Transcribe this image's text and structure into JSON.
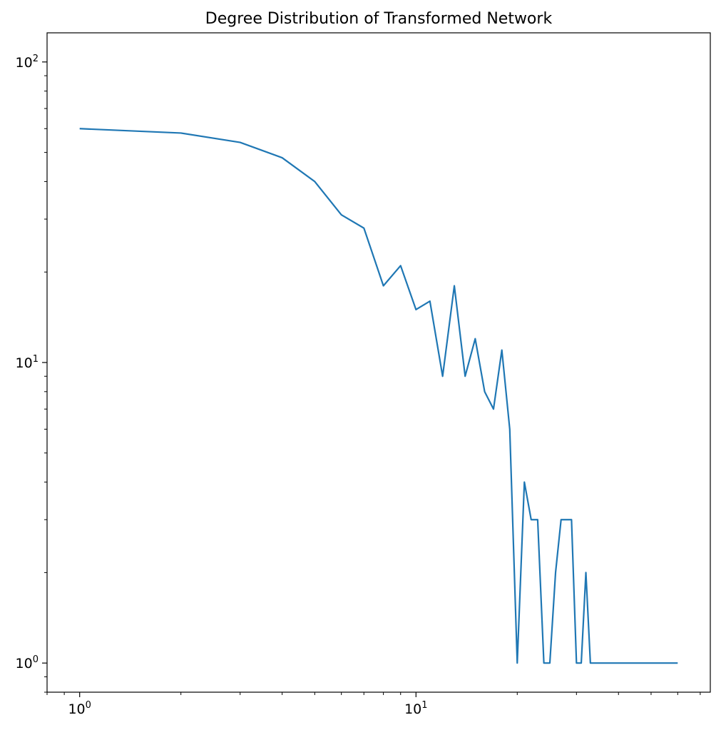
{
  "chart_data": {
    "type": "line",
    "title": "Degree Distribution of Transformed Network",
    "xlabel": "",
    "ylabel": "",
    "xscale": "log",
    "yscale": "log",
    "grid": false,
    "xlim": [
      0.8,
      75
    ],
    "ylim": [
      0.8,
      125
    ],
    "x_ticks": [
      {
        "value": 1,
        "label": "10",
        "exp": "0"
      },
      {
        "value": 10,
        "label": "10",
        "exp": "1"
      }
    ],
    "y_ticks": [
      {
        "value": 1,
        "label": "10",
        "exp": "0"
      },
      {
        "value": 10,
        "label": "10",
        "exp": "1"
      },
      {
        "value": 100,
        "label": "10",
        "exp": "2"
      }
    ],
    "series": [
      {
        "color": "#1f77b4",
        "x": [
          0,
          1,
          2,
          3,
          4,
          5,
          6,
          7,
          8,
          9,
          10,
          11,
          12,
          13,
          14,
          15,
          16,
          17,
          18,
          19,
          20,
          21,
          22,
          23,
          24,
          25,
          26,
          27,
          28,
          29,
          30,
          31,
          32,
          33,
          34,
          35,
          36,
          37,
          38,
          39,
          40,
          41,
          42,
          43,
          44,
          45,
          46,
          47,
          48,
          49,
          50,
          51,
          52,
          53,
          54,
          55,
          56,
          57,
          58,
          59,
          60
        ],
        "y": [
          60,
          60,
          58,
          54,
          48,
          40,
          31,
          28,
          18,
          21,
          15,
          16,
          9,
          18,
          9,
          12,
          8,
          7,
          11,
          6,
          1,
          4,
          3,
          3,
          1,
          1,
          2,
          3,
          3,
          3,
          1,
          1,
          2,
          1,
          1,
          1,
          1,
          1,
          1,
          1,
          1,
          1,
          1,
          1,
          1,
          1,
          1,
          1,
          1,
          1,
          1,
          1,
          1,
          1,
          1,
          1,
          1,
          1,
          1,
          1,
          1
        ]
      }
    ]
  }
}
